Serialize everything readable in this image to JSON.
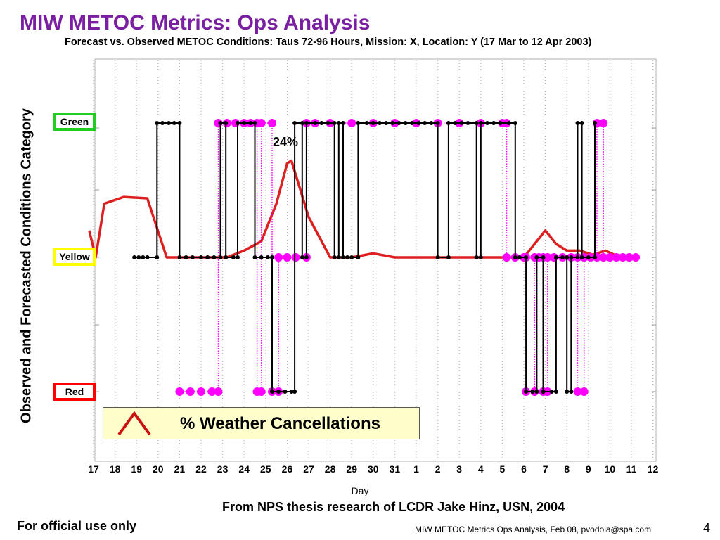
{
  "slide": {
    "title": "MIW METOC Metrics:  Ops Analysis",
    "source": "From NPS thesis research of LCDR Jake Hinz, USN, 2004",
    "footer_left": "For official use only",
    "footer_right": "MIW METOC Metrics Ops Analysis, Feb 08, pvodola@spa.com",
    "page_number": "4"
  },
  "legend": {
    "label": "% Weather Cancellations",
    "icon": "red-caret-line-icon"
  },
  "categories": [
    {
      "label": "Green",
      "color": "#22cc22",
      "level": 2
    },
    {
      "label": "Yellow",
      "color": "#ffff00",
      "level": 1
    },
    {
      "label": "Red",
      "color": "#ff0000",
      "level": 0
    }
  ],
  "chart_data": {
    "type": "line",
    "title": "Forecast vs. Observed METOC Conditions: Taus 72-96  Hours, Mission: X, Location: Y (17 Mar to 12 Apr 2003)",
    "xlabel": "Day",
    "ylabel": "Observed and Forecasted Conditions Category",
    "x_tick_labels": [
      "17",
      "18",
      "19",
      "20",
      "21",
      "22",
      "23",
      "24",
      "25",
      "26",
      "27",
      "28",
      "29",
      "30",
      "31",
      "1",
      "2",
      "3",
      "4",
      "5",
      "6",
      "7",
      "8",
      "9",
      "10",
      "11",
      "12"
    ],
    "xlim": [
      0,
      26
    ],
    "y_categories": [
      "Red",
      "Yellow",
      "Green"
    ],
    "grid": "vertical dotted",
    "annotations": [
      {
        "text": "24%",
        "x": 9.2
      }
    ],
    "series": [
      {
        "name": "",
        "color": "#000000",
        "style": "step line with dot markers",
        "points": [
          [
            1.9,
            1
          ],
          [
            2.1,
            1
          ],
          [
            2.3,
            1
          ],
          [
            2.5,
            1
          ],
          [
            2.95,
            1
          ],
          [
            2.95,
            2
          ],
          [
            3.2,
            2
          ],
          [
            3.5,
            2
          ],
          [
            3.75,
            2
          ],
          [
            4.0,
            2
          ],
          [
            4.0,
            1
          ],
          [
            4.3,
            1
          ],
          [
            4.6,
            1
          ],
          [
            5.0,
            1
          ],
          [
            5.3,
            1
          ],
          [
            5.6,
            1
          ],
          [
            5.9,
            1
          ],
          [
            5.9,
            2
          ],
          [
            6.15,
            2
          ],
          [
            6.15,
            1
          ],
          [
            6.5,
            1
          ],
          [
            6.7,
            1
          ],
          [
            6.7,
            2
          ],
          [
            7.0,
            2
          ],
          [
            7.3,
            2
          ],
          [
            7.5,
            2
          ],
          [
            7.5,
            1
          ],
          [
            7.8,
            1
          ],
          [
            8.1,
            1
          ],
          [
            8.3,
            1
          ],
          [
            8.3,
            0
          ],
          [
            8.6,
            0
          ],
          [
            8.9,
            0
          ],
          [
            9.2,
            0
          ],
          [
            9.35,
            0
          ],
          [
            9.35,
            2
          ],
          [
            9.7,
            2
          ],
          [
            9.7,
            1
          ],
          [
            9.9,
            1
          ],
          [
            9.9,
            2
          ],
          [
            10.3,
            2
          ],
          [
            10.6,
            2
          ],
          [
            10.9,
            2
          ],
          [
            11.2,
            2
          ],
          [
            11.2,
            1
          ],
          [
            11.4,
            1
          ],
          [
            11.4,
            2
          ],
          [
            11.6,
            2
          ],
          [
            11.6,
            1
          ],
          [
            11.8,
            1
          ],
          [
            12.0,
            1
          ],
          [
            12.3,
            1
          ],
          [
            12.3,
            2
          ],
          [
            12.7,
            2
          ],
          [
            13.0,
            2
          ],
          [
            13.3,
            2
          ],
          [
            13.6,
            2
          ],
          [
            13.9,
            2
          ],
          [
            14.2,
            2
          ],
          [
            14.5,
            2
          ],
          [
            14.8,
            2
          ],
          [
            15.1,
            2
          ],
          [
            15.4,
            2
          ],
          [
            15.7,
            2
          ],
          [
            16.0,
            2
          ],
          [
            16.0,
            1
          ],
          [
            16.5,
            1
          ],
          [
            16.5,
            2
          ],
          [
            16.8,
            2
          ],
          [
            17.1,
            2
          ],
          [
            17.4,
            2
          ],
          [
            17.8,
            2
          ],
          [
            17.8,
            1
          ],
          [
            18.0,
            1
          ],
          [
            18.0,
            2
          ],
          [
            18.3,
            2
          ],
          [
            18.6,
            2
          ],
          [
            18.9,
            2
          ],
          [
            19.3,
            2
          ],
          [
            19.6,
            2
          ],
          [
            19.6,
            1
          ],
          [
            19.8,
            1
          ],
          [
            20.1,
            1
          ],
          [
            20.1,
            0
          ],
          [
            20.4,
            0
          ],
          [
            20.6,
            0
          ],
          [
            20.6,
            1
          ],
          [
            20.9,
            1
          ],
          [
            20.9,
            0
          ],
          [
            21.3,
            0
          ],
          [
            21.5,
            0
          ],
          [
            21.5,
            1
          ],
          [
            21.8,
            1
          ],
          [
            22.0,
            1
          ],
          [
            22.0,
            0
          ],
          [
            22.2,
            0
          ],
          [
            22.2,
            1
          ],
          [
            22.5,
            1
          ],
          [
            22.5,
            2
          ],
          [
            22.7,
            2
          ],
          [
            22.7,
            1
          ],
          [
            23.0,
            1
          ],
          [
            23.3,
            1
          ],
          [
            23.3,
            2
          ]
        ]
      },
      {
        "name": "",
        "color": "#ff00ff",
        "style": "dotted step line with large markers",
        "points": [
          [
            4.0,
            0
          ],
          [
            4.5,
            0
          ],
          [
            5.0,
            0
          ],
          [
            5.5,
            0
          ],
          [
            5.8,
            0
          ],
          [
            5.8,
            2
          ],
          [
            6.2,
            2
          ],
          [
            6.6,
            2
          ],
          [
            7.0,
            2
          ],
          [
            7.3,
            2
          ],
          [
            7.6,
            2
          ],
          [
            7.6,
            0
          ],
          [
            7.8,
            0
          ],
          [
            7.8,
            2
          ],
          [
            8.3,
            2
          ],
          [
            8.3,
            0
          ],
          [
            8.6,
            0
          ],
          [
            8.6,
            1
          ],
          [
            9.0,
            1
          ],
          [
            9.4,
            1
          ],
          [
            9.9,
            1
          ],
          [
            9.9,
            2
          ],
          [
            10.3,
            2
          ],
          [
            11.0,
            2
          ],
          [
            12.0,
            2
          ],
          [
            13.0,
            2
          ],
          [
            14.0,
            2
          ],
          [
            15.0,
            2
          ],
          [
            16.0,
            2
          ],
          [
            17.0,
            2
          ],
          [
            18.0,
            2
          ],
          [
            19.0,
            2
          ],
          [
            19.2,
            2
          ],
          [
            19.2,
            1
          ],
          [
            19.6,
            1
          ],
          [
            20.0,
            1
          ],
          [
            20.1,
            1
          ],
          [
            20.1,
            0
          ],
          [
            20.5,
            0
          ],
          [
            20.5,
            1
          ],
          [
            20.7,
            1
          ],
          [
            20.9,
            1
          ],
          [
            20.9,
            0
          ],
          [
            21.1,
            0
          ],
          [
            21.1,
            1
          ],
          [
            21.4,
            1
          ],
          [
            21.8,
            1
          ],
          [
            22.2,
            1
          ],
          [
            22.5,
            1
          ],
          [
            22.5,
            0
          ],
          [
            22.8,
            0
          ],
          [
            22.8,
            1
          ],
          [
            23.1,
            1
          ],
          [
            23.4,
            1
          ],
          [
            23.4,
            2
          ],
          [
            23.7,
            2
          ],
          [
            23.7,
            1
          ],
          [
            24.0,
            1
          ],
          [
            24.3,
            1
          ],
          [
            24.6,
            1
          ],
          [
            24.9,
            1
          ],
          [
            25.2,
            1
          ]
        ]
      },
      {
        "name": "% Weather Cancellations",
        "color": "#dd1f1f",
        "style": "solid line",
        "points": [
          [
            -0.2,
            1.2
          ],
          [
            0.1,
            1.0
          ],
          [
            0.5,
            1.4
          ],
          [
            1.4,
            1.45
          ],
          [
            2.5,
            1.44
          ],
          [
            3.4,
            1.0
          ],
          [
            4.0,
            1.0
          ],
          [
            5.0,
            1.0
          ],
          [
            6.0,
            1.0
          ],
          [
            6.2,
            1.0
          ],
          [
            7.0,
            1.05
          ],
          [
            7.8,
            1.12
          ],
          [
            8.5,
            1.4
          ],
          [
            9.0,
            1.7
          ],
          [
            9.2,
            1.72
          ],
          [
            10.0,
            1.3
          ],
          [
            11.0,
            1.0
          ],
          [
            12.0,
            1.0
          ],
          [
            13.0,
            1.03
          ],
          [
            14.0,
            1.0
          ],
          [
            15.0,
            1.0
          ],
          [
            16.0,
            1.0
          ],
          [
            17.0,
            1.0
          ],
          [
            18.0,
            1.0
          ],
          [
            19.0,
            1.0
          ],
          [
            20.0,
            1.0
          ],
          [
            21.0,
            1.2
          ],
          [
            21.5,
            1.1
          ],
          [
            22.0,
            1.05
          ],
          [
            22.6,
            1.05
          ],
          [
            23.2,
            1.02
          ],
          [
            23.8,
            1.05
          ],
          [
            24.2,
            1.02
          ],
          [
            25.2,
            1.0
          ]
        ]
      }
    ]
  }
}
